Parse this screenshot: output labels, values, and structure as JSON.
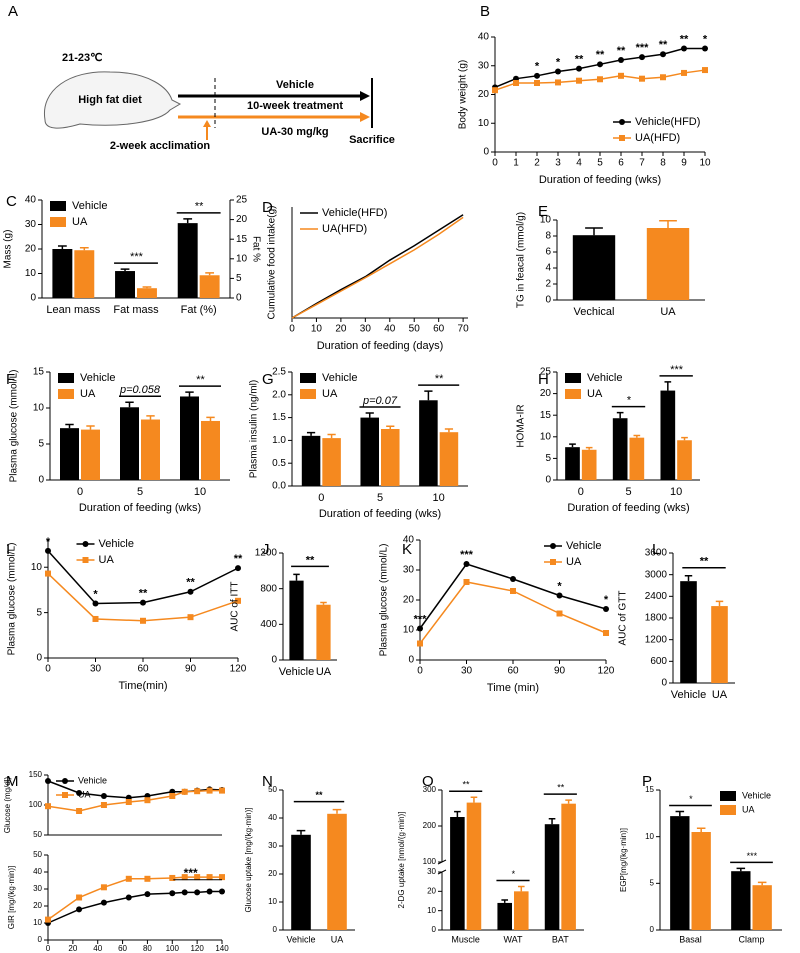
{
  "diagram": {
    "label": "A",
    "temperature": "21-23℃",
    "diet": "High fat diet",
    "vehicle": "Vehicle",
    "treatment": "10-week treatment",
    "dose": "UA-30 mg/kg",
    "acclimation": "2-week acclimation",
    "endpoint": "Sacrifice"
  },
  "chart_data": [
    {
      "label": "B",
      "type": "line",
      "x": [
        0,
        1,
        2,
        3,
        4,
        5,
        6,
        7,
        8,
        9,
        10
      ],
      "xlim": [
        0,
        10
      ],
      "xticks": [
        0,
        1,
        2,
        3,
        4,
        5,
        6,
        7,
        8,
        9,
        10
      ],
      "ylim": [
        0,
        40
      ],
      "yticks": [
        0,
        10,
        20,
        30,
        40
      ],
      "xlabel": "Duration of feeding (wks)",
      "ylabel": "Body weight (g)",
      "legend": "bottom-right",
      "sig": [
        null,
        null,
        "*",
        "*",
        "**",
        "**",
        "**",
        "***",
        "**",
        "**",
        "*"
      ],
      "series": [
        {
          "name": "Vehicle(HFD)",
          "color": "#000000",
          "marker": "circle",
          "values": [
            22.5,
            25.5,
            26.5,
            28,
            29,
            30.5,
            32,
            33,
            34,
            36,
            36
          ]
        },
        {
          "name": "UA(HFD)",
          "color": "#f5891f",
          "marker": "square",
          "values": [
            21.5,
            24,
            24,
            24.2,
            24.8,
            25.3,
            26.5,
            25.5,
            26,
            27.5,
            28.5
          ]
        }
      ]
    },
    {
      "label": "C",
      "type": "bar",
      "categories": [
        "Lean mass",
        "Fat mass",
        "Fat (%)"
      ],
      "ylim": [
        0,
        40
      ],
      "yticks": [
        0,
        10,
        20,
        30,
        40
      ],
      "y2lim": [
        0,
        25
      ],
      "y2ticks": [
        0,
        5,
        10,
        15,
        20,
        25
      ],
      "y2_categories": [
        "Fat (%)"
      ],
      "ylabel": "Mass (g)",
      "y2label": "Fat %",
      "legend": "top-left",
      "annotations": [
        null,
        "***",
        "**"
      ],
      "series": [
        {
          "name": "Vehicle",
          "color": "#000000",
          "values": [
            20,
            11,
            19.1
          ],
          "errors": [
            1.2,
            0.8,
            1.1
          ]
        },
        {
          "name": "UA",
          "color": "#f5891f",
          "values": [
            19.5,
            4,
            5.8
          ],
          "errors": [
            1,
            0.5,
            0.6
          ]
        }
      ]
    },
    {
      "label": "D",
      "type": "line",
      "x": [
        0,
        10,
        20,
        30,
        40,
        50,
        60,
        70
      ],
      "xlim": [
        0,
        72
      ],
      "xticks": [
        0,
        10,
        20,
        30,
        40,
        50,
        60,
        70
      ],
      "ylim": [
        0,
        215
      ],
      "xlabel": "Duration of feeding (days)",
      "ylabel": "Cumulative food intake(g)",
      "legend": "top-left",
      "series": [
        {
          "name": "Vehicle(HFD)",
          "color": "#000000",
          "values": [
            0,
            28,
            55,
            80,
            112,
            140,
            170,
            200
          ]
        },
        {
          "name": "UA(HFD)",
          "color": "#f5891f",
          "values": [
            0,
            26,
            52,
            78,
            105,
            132,
            162,
            195
          ]
        }
      ]
    },
    {
      "label": "E",
      "type": "bar",
      "categories": [
        "Vechical",
        "UA"
      ],
      "values": [
        8.1,
        9.0
      ],
      "errors": [
        0.9,
        0.9
      ],
      "colors": [
        "#000000",
        "#f5891f"
      ],
      "ylim": [
        0,
        10
      ],
      "yticks": [
        0,
        2,
        4,
        6,
        8,
        10
      ],
      "ylabel": "TG in feacal (mmol/g)"
    },
    {
      "label": "F",
      "type": "bar",
      "categories": [
        "0",
        "5",
        "10"
      ],
      "ylim": [
        0,
        15
      ],
      "yticks": [
        0,
        5,
        10,
        15
      ],
      "xlabel": "Duration of feeding (wks)",
      "ylabel": "Plasma glucose (mmol/L)",
      "legend": "top-left",
      "annotations": [
        null,
        "p=0.058",
        "**"
      ],
      "series": [
        {
          "name": "Vehicle",
          "color": "#000000",
          "values": [
            7.2,
            10.1,
            11.6
          ],
          "errors": [
            0.5,
            0.7,
            0.6
          ]
        },
        {
          "name": "UA",
          "color": "#f5891f",
          "values": [
            7.0,
            8.4,
            8.2
          ],
          "errors": [
            0.5,
            0.5,
            0.5
          ]
        }
      ]
    },
    {
      "label": "G",
      "type": "bar",
      "categories": [
        "0",
        "5",
        "10"
      ],
      "ylim": [
        0,
        2.5
      ],
      "yticks": [
        {
          "value": 0,
          "label": "0.0"
        },
        0.5,
        {
          "value": 1,
          "label": "1.0"
        },
        1.5,
        {
          "value": 2,
          "label": "2.0"
        },
        2.5
      ],
      "xlabel": "Duration of feeding (wks)",
      "ylabel": "Plasma insulin (ng/ml)",
      "legend": "top-left",
      "annotations": [
        null,
        "p=0.07",
        "**"
      ],
      "series": [
        {
          "name": "Vehicle",
          "color": "#000000",
          "values": [
            1.1,
            1.5,
            1.88
          ],
          "errors": [
            0.07,
            0.1,
            0.2
          ]
        },
        {
          "name": "UA",
          "color": "#f5891f",
          "values": [
            1.05,
            1.25,
            1.18
          ],
          "errors": [
            0.08,
            0.06,
            0.07
          ]
        }
      ]
    },
    {
      "label": "H",
      "type": "bar",
      "categories": [
        "0",
        "5",
        "10"
      ],
      "ylim": [
        0,
        25
      ],
      "yticks": [
        0,
        5,
        10,
        15,
        20,
        25
      ],
      "xlabel": "Duration of feeding (wks)",
      "ylabel": "HOMA-IR",
      "legend": "top-left",
      "annotations": [
        null,
        "*",
        "***"
      ],
      "series": [
        {
          "name": "Vehicle",
          "color": "#000000",
          "values": [
            7.6,
            14.3,
            20.7
          ],
          "errors": [
            0.7,
            1.3,
            2
          ]
        },
        {
          "name": "UA",
          "color": "#f5891f",
          "values": [
            7,
            9.8,
            9.2
          ],
          "errors": [
            0.5,
            0.5,
            0.6
          ]
        }
      ]
    },
    {
      "label": "I",
      "type": "line",
      "x": [
        0,
        30,
        60,
        90,
        120
      ],
      "xlim": [
        0,
        120
      ],
      "xticks": [
        0,
        30,
        60,
        90,
        120
      ],
      "ylim": [
        0,
        13
      ],
      "yticks": [
        0,
        5,
        10
      ],
      "xlabel": "Time(min)",
      "ylabel": "Plasma glucose (mmol/L)",
      "legend": "top-center",
      "sig": [
        "*",
        "*",
        "**",
        "**",
        "**"
      ],
      "series": [
        {
          "name": "Vehicle",
          "color": "#000000",
          "marker": "circle",
          "values": [
            11.8,
            6.0,
            6.1,
            7.3,
            9.9
          ]
        },
        {
          "name": "UA",
          "color": "#f5891f",
          "marker": "square",
          "values": [
            9.3,
            4.3,
            4.1,
            4.5,
            6.3
          ]
        }
      ]
    },
    {
      "label": "J",
      "type": "bar",
      "categories": [
        "Vehicle",
        "UA"
      ],
      "values": [
        890,
        620
      ],
      "errors": [
        70,
        25
      ],
      "colors": [
        "#000000",
        "#f5891f"
      ],
      "ylim": [
        0,
        1200
      ],
      "yticks": [
        0,
        400,
        800,
        1200
      ],
      "ylabel": "AUC of ITT",
      "annotation": "**"
    },
    {
      "label": "K",
      "type": "line",
      "x": [
        0,
        30,
        60,
        90,
        120
      ],
      "xlim": [
        0,
        120
      ],
      "xticks": [
        0,
        30,
        60,
        90,
        120
      ],
      "ylim": [
        0,
        40
      ],
      "yticks": [
        0,
        10,
        20,
        30,
        40
      ],
      "xlabel": "Time (min)",
      "ylabel": "Plasma glucose (mmol/L)",
      "legend": "top-right",
      "sig": [
        "***",
        "***",
        null,
        "*",
        "*"
      ],
      "series": [
        {
          "name": "Vehicle",
          "color": "#000000",
          "marker": "circle",
          "values": [
            10.5,
            32,
            27,
            21.5,
            17
          ]
        },
        {
          "name": "UA",
          "color": "#f5891f",
          "marker": "square",
          "values": [
            5.5,
            26,
            23,
            15.5,
            9
          ]
        }
      ]
    },
    {
      "label": "L",
      "type": "bar",
      "categories": [
        "Vehicle",
        "UA"
      ],
      "values": [
        2820,
        2130
      ],
      "errors": [
        150,
        130
      ],
      "colors": [
        "#000000",
        "#f5891f"
      ],
      "ylim": [
        0,
        3600
      ],
      "yticks": [
        0,
        600,
        1200,
        1800,
        2400,
        3000,
        3600
      ],
      "ylabel": "AUC of GTT",
      "annotation": "**"
    },
    {
      "label": "M",
      "type": "line",
      "x": [
        0,
        25,
        45,
        65,
        80,
        100,
        110,
        120,
        130,
        140
      ],
      "xlim": [
        0,
        140
      ],
      "ylim": [
        50,
        150
      ],
      "yticks": [
        50,
        100,
        150
      ],
      "ylabel": "Glucose (mg/dl)",
      "legend": "top-left",
      "series": [
        {
          "name": "Vehicle",
          "color": "#000000",
          "marker": "circle",
          "values": [
            140,
            120,
            115,
            112,
            115,
            122,
            122,
            124,
            126,
            125
          ]
        },
        {
          "name": "UA",
          "color": "#f5891f",
          "marker": "square",
          "values": [
            98,
            90,
            100,
            105,
            108,
            115,
            122,
            123,
            124,
            124
          ]
        }
      ]
    },
    {
      "type": "line",
      "x": [
        0,
        25,
        45,
        65,
        80,
        100,
        110,
        120,
        130,
        140
      ],
      "xlim": [
        0,
        140
      ],
      "xticks": [
        0,
        20,
        40,
        60,
        80,
        100,
        120,
        140
      ],
      "ylim": [
        0,
        50
      ],
      "yticks": [
        0,
        10,
        20,
        30,
        40,
        50
      ],
      "ylabel": "GIR [mg/(kg·min)]",
      "annotation": "***",
      "series": [
        {
          "name": "Vehicle",
          "color": "#000000",
          "marker": "circle",
          "values": [
            10,
            18,
            22,
            25,
            27,
            27.5,
            28,
            28,
            28.5,
            28.5
          ]
        },
        {
          "name": "UA",
          "color": "#f5891f",
          "marker": "square",
          "values": [
            12,
            25,
            31,
            36,
            36,
            36.5,
            37,
            37,
            37,
            37
          ]
        }
      ]
    },
    {
      "label": "N",
      "type": "bar",
      "categories": [
        "Vehicle",
        "UA"
      ],
      "values": [
        34,
        41.5
      ],
      "errors": [
        1.5,
        1.5
      ],
      "colors": [
        "#000000",
        "#f5891f"
      ],
      "ylim": [
        0,
        50
      ],
      "yticks": [
        0,
        10,
        20,
        30,
        40,
        50
      ],
      "ylabel": "Glucose uptake [mg/(kg·min)]",
      "annotation": "**"
    },
    {
      "label": "O",
      "type": "bar",
      "categories": [
        "Muscle",
        "WAT",
        "BAT"
      ],
      "ylim": [
        0,
        300
      ],
      "ybreak": [
        30,
        100
      ],
      "yticks": [
        0,
        10,
        20,
        30,
        100,
        200,
        300
      ],
      "ylabel": "2-DG uptake [nmol/(g·min)]",
      "annotations": [
        "**",
        "*",
        "**"
      ],
      "series": [
        {
          "name": "Vehicle",
          "color": "#000000",
          "values": [
            225,
            14,
            205
          ],
          "errors": [
            15,
            1.5,
            15
          ]
        },
        {
          "name": "UA",
          "color": "#f5891f",
          "values": [
            265,
            20,
            262
          ],
          "errors": [
            15,
            2.5,
            10
          ]
        }
      ]
    },
    {
      "label": "P",
      "type": "bar",
      "categories": [
        "Basal",
        "Clamp"
      ],
      "ylim": [
        0,
        15
      ],
      "yticks": [
        0,
        5,
        10,
        15
      ],
      "ylabel": "EGP[mg/(kg·min)]",
      "legend": "top-right",
      "annotations": [
        "*",
        "***"
      ],
      "series": [
        {
          "name": "Vehicle",
          "color": "#000000",
          "values": [
            12.2,
            6.3
          ],
          "errors": [
            0.5,
            0.3
          ]
        },
        {
          "name": "UA",
          "color": "#f5891f",
          "values": [
            10.5,
            4.8
          ],
          "errors": [
            0.4,
            0.3
          ]
        }
      ]
    }
  ]
}
